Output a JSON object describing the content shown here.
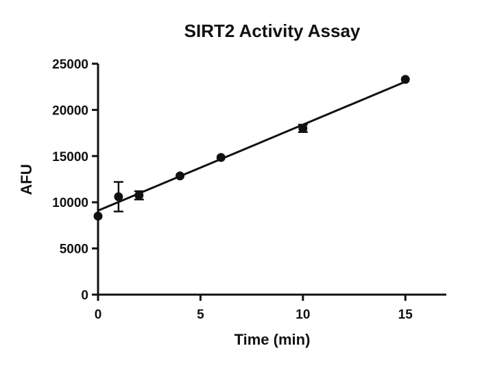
{
  "chart_data": {
    "type": "scatter",
    "title": "SIRT2 Activity Assay",
    "xlabel": "Time (min)",
    "ylabel": "AFU",
    "xlim": [
      0,
      17
    ],
    "ylim": [
      0,
      25000
    ],
    "xticks": [
      0,
      5,
      10,
      15
    ],
    "yticks": [
      0,
      5000,
      10000,
      15000,
      20000,
      25000
    ],
    "xtick_labels": [
      "0",
      "5",
      "10",
      "15"
    ],
    "ytick_labels": [
      "0",
      "5000",
      "10000",
      "15000",
      "20000",
      "25000"
    ],
    "grid": false,
    "legend": "none",
    "series": [
      {
        "points": [
          {
            "x": 0,
            "y": 8500,
            "err": 0
          },
          {
            "x": 1,
            "y": 10600,
            "err": 1600
          },
          {
            "x": 2,
            "y": 10750,
            "err": 450
          },
          {
            "x": 4,
            "y": 12850,
            "err": 0
          },
          {
            "x": 6,
            "y": 14850,
            "err": 0
          },
          {
            "x": 10,
            "y": 18000,
            "err": 400
          },
          {
            "x": 15,
            "y": 23300,
            "err": 0
          }
        ],
        "fit": {
          "type": "linear",
          "x": [
            0,
            15
          ],
          "y": [
            9100,
            23050
          ]
        },
        "color": "#111111"
      }
    ]
  }
}
